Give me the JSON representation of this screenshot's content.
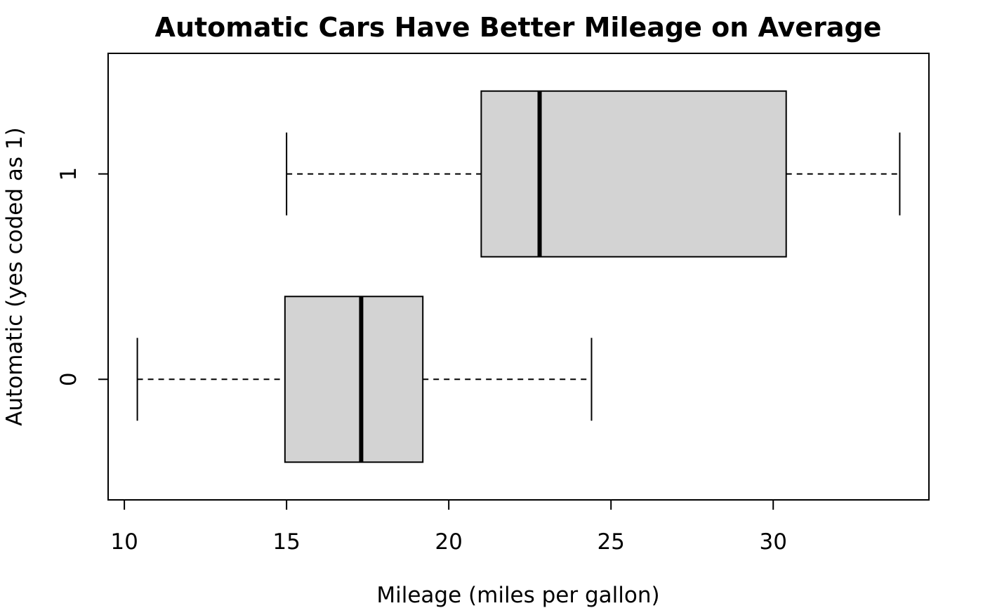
{
  "chart_data": {
    "type": "boxplot",
    "orientation": "horizontal",
    "title": "Automatic Cars Have Better Mileage on Average",
    "xlabel": "Mileage (miles per gallon)",
    "ylabel": "Automatic (yes coded as 1)",
    "xlim": [
      9.5,
      34.8
    ],
    "x_ticks": [
      10,
      15,
      20,
      25,
      30
    ],
    "categories": [
      "0",
      "1"
    ],
    "boxes": [
      {
        "category": "0",
        "min": 10.4,
        "q1": 14.95,
        "median": 17.3,
        "q3": 19.2,
        "max": 24.4
      },
      {
        "category": "1",
        "min": 15.0,
        "q1": 21.0,
        "median": 22.8,
        "q3": 30.4,
        "max": 33.9
      }
    ],
    "box_fill": "#d3d3d3",
    "line_color": "#000000",
    "grid": false,
    "legend": "none"
  }
}
